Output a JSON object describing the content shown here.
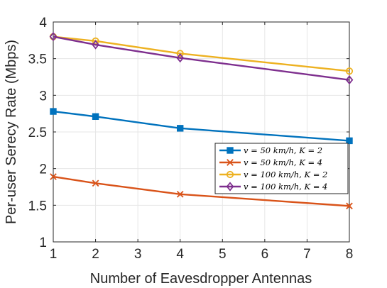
{
  "chart_data": {
    "type": "line",
    "xlabel": "Number of Eavesdropper Antennas",
    "ylabel": "Per-user Serecy Rate (Mbps)",
    "xlim": [
      1,
      8
    ],
    "ylim": [
      1,
      4
    ],
    "xticks": [
      "1",
      "2",
      "3",
      "4",
      "5",
      "6",
      "7",
      "8"
    ],
    "yticks": [
      "1",
      "1.5",
      "2",
      "2.5",
      "3",
      "3.5",
      "4"
    ],
    "grid": true,
    "legend_position": "right-middle",
    "x": [
      1,
      2,
      4,
      8
    ],
    "series": [
      {
        "name": "v = 50 km/h, K = 2",
        "values": [
          2.78,
          2.71,
          2.55,
          2.38
        ],
        "color": "#0072BD",
        "marker": "square"
      },
      {
        "name": "v = 50 km/h, K = 4",
        "values": [
          1.89,
          1.8,
          1.65,
          1.49
        ],
        "color": "#D95319",
        "marker": "x"
      },
      {
        "name": "v = 100 km/h, K = 2",
        "values": [
          3.8,
          3.74,
          3.57,
          3.33
        ],
        "color": "#EDB120",
        "marker": "circle"
      },
      {
        "name": "v = 100 km/h, K = 4",
        "values": [
          3.8,
          3.69,
          3.51,
          3.21
        ],
        "color": "#7E2F8E",
        "marker": "diamond"
      }
    ]
  }
}
